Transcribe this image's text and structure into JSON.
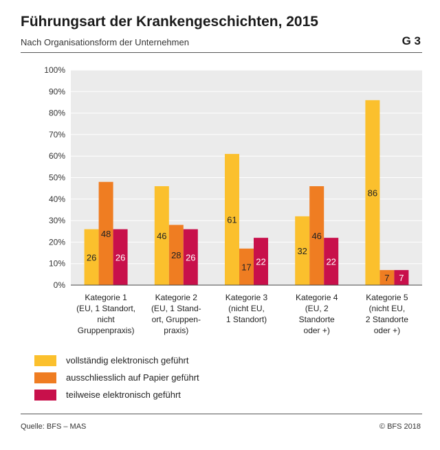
{
  "header": {
    "title": "Führungsart der Krankengeschichten, 2015",
    "subtitle": "Nach Organisationsform der Unternehmen",
    "code": "G 3"
  },
  "footer": {
    "source": "Quelle: BFS – MAS",
    "copyright": "© BFS 2018"
  },
  "colors": {
    "series_1": "#FBC02D",
    "series_2": "#EF7D22",
    "series_3": "#C8104B",
    "plot_bg": "#EBEBEB",
    "grid": "#FFFFFF"
  },
  "chart_data": {
    "type": "bar",
    "title": "Führungsart der Krankengeschichten, 2015",
    "subtitle": "Nach Organisationsform der Unternehmen",
    "xlabel": "",
    "ylabel": "",
    "ylim": [
      0,
      100
    ],
    "yticks": [
      "0%",
      "10%",
      "20%",
      "30%",
      "40%",
      "50%",
      "60%",
      "70%",
      "80%",
      "90%",
      "100%"
    ],
    "grid": true,
    "legend_position": "bottom",
    "categories": [
      [
        "Kategorie 1",
        "(EU, 1 Standort,",
        "nicht",
        "Gruppenpraxis)"
      ],
      [
        "Kategorie 2",
        "(EU, 1 Stand-",
        "ort, Gruppen-",
        "praxis)"
      ],
      [
        "Kategorie 3",
        "(nicht EU,",
        "1 Standort)"
      ],
      [
        "Kategorie 4",
        "(EU, 2",
        "Standorte",
        "oder +)"
      ],
      [
        "Kategorie 5",
        "(nicht EU,",
        "2 Standorte",
        "oder +)"
      ]
    ],
    "series": [
      {
        "name": "vollständig elektronisch geführt",
        "color": "#FBC02D",
        "values": [
          26,
          46,
          61,
          32,
          86
        ],
        "labels": [
          "26",
          "46",
          "61",
          "32",
          "86"
        ]
      },
      {
        "name": "ausschliesslich auf Papier geführt",
        "color": "#EF7D22",
        "values": [
          48,
          28,
          17,
          46,
          7
        ],
        "labels": [
          "48",
          "28",
          "17",
          "46",
          "7"
        ]
      },
      {
        "name": "teilweise elektronisch geführt",
        "color": "#C8104B",
        "values": [
          26,
          26,
          22,
          22,
          7
        ],
        "labels": [
          "26",
          "26",
          "22",
          "22",
          "7"
        ]
      }
    ]
  }
}
